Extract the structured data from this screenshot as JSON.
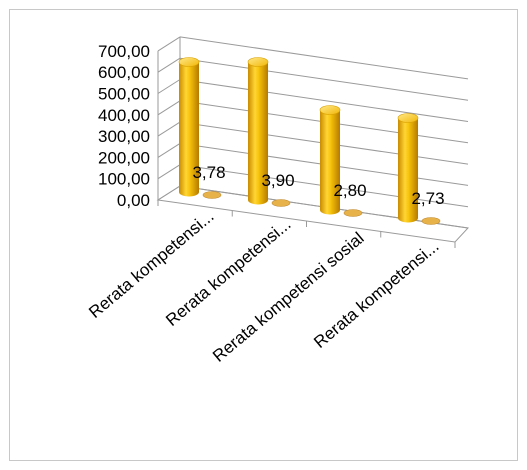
{
  "chart_data": {
    "type": "bar",
    "style": "3d-cylinder",
    "categories": [
      "Rerata kompetensi...",
      "Rerata kompetensi...",
      "Rerata kompetensi sosial",
      "Rerata kompetensi..."
    ],
    "values": [
      3.78,
      3.9,
      2.8,
      2.73
    ],
    "data_labels": [
      "3,78",
      "3,90",
      "2,80",
      "2,73"
    ],
    "y_ticks": [
      "0,00",
      "100,00",
      "200,00",
      "300,00",
      "400,00",
      "500,00",
      "600,00",
      "700,00"
    ],
    "ylim": [
      0,
      700
    ],
    "grid": true,
    "legend": "none",
    "colors": {
      "bar": "#F2B705",
      "bar_dark": "#C98A00",
      "bar_light": "#FFE27A",
      "grid": "#9a9a9a"
    }
  }
}
